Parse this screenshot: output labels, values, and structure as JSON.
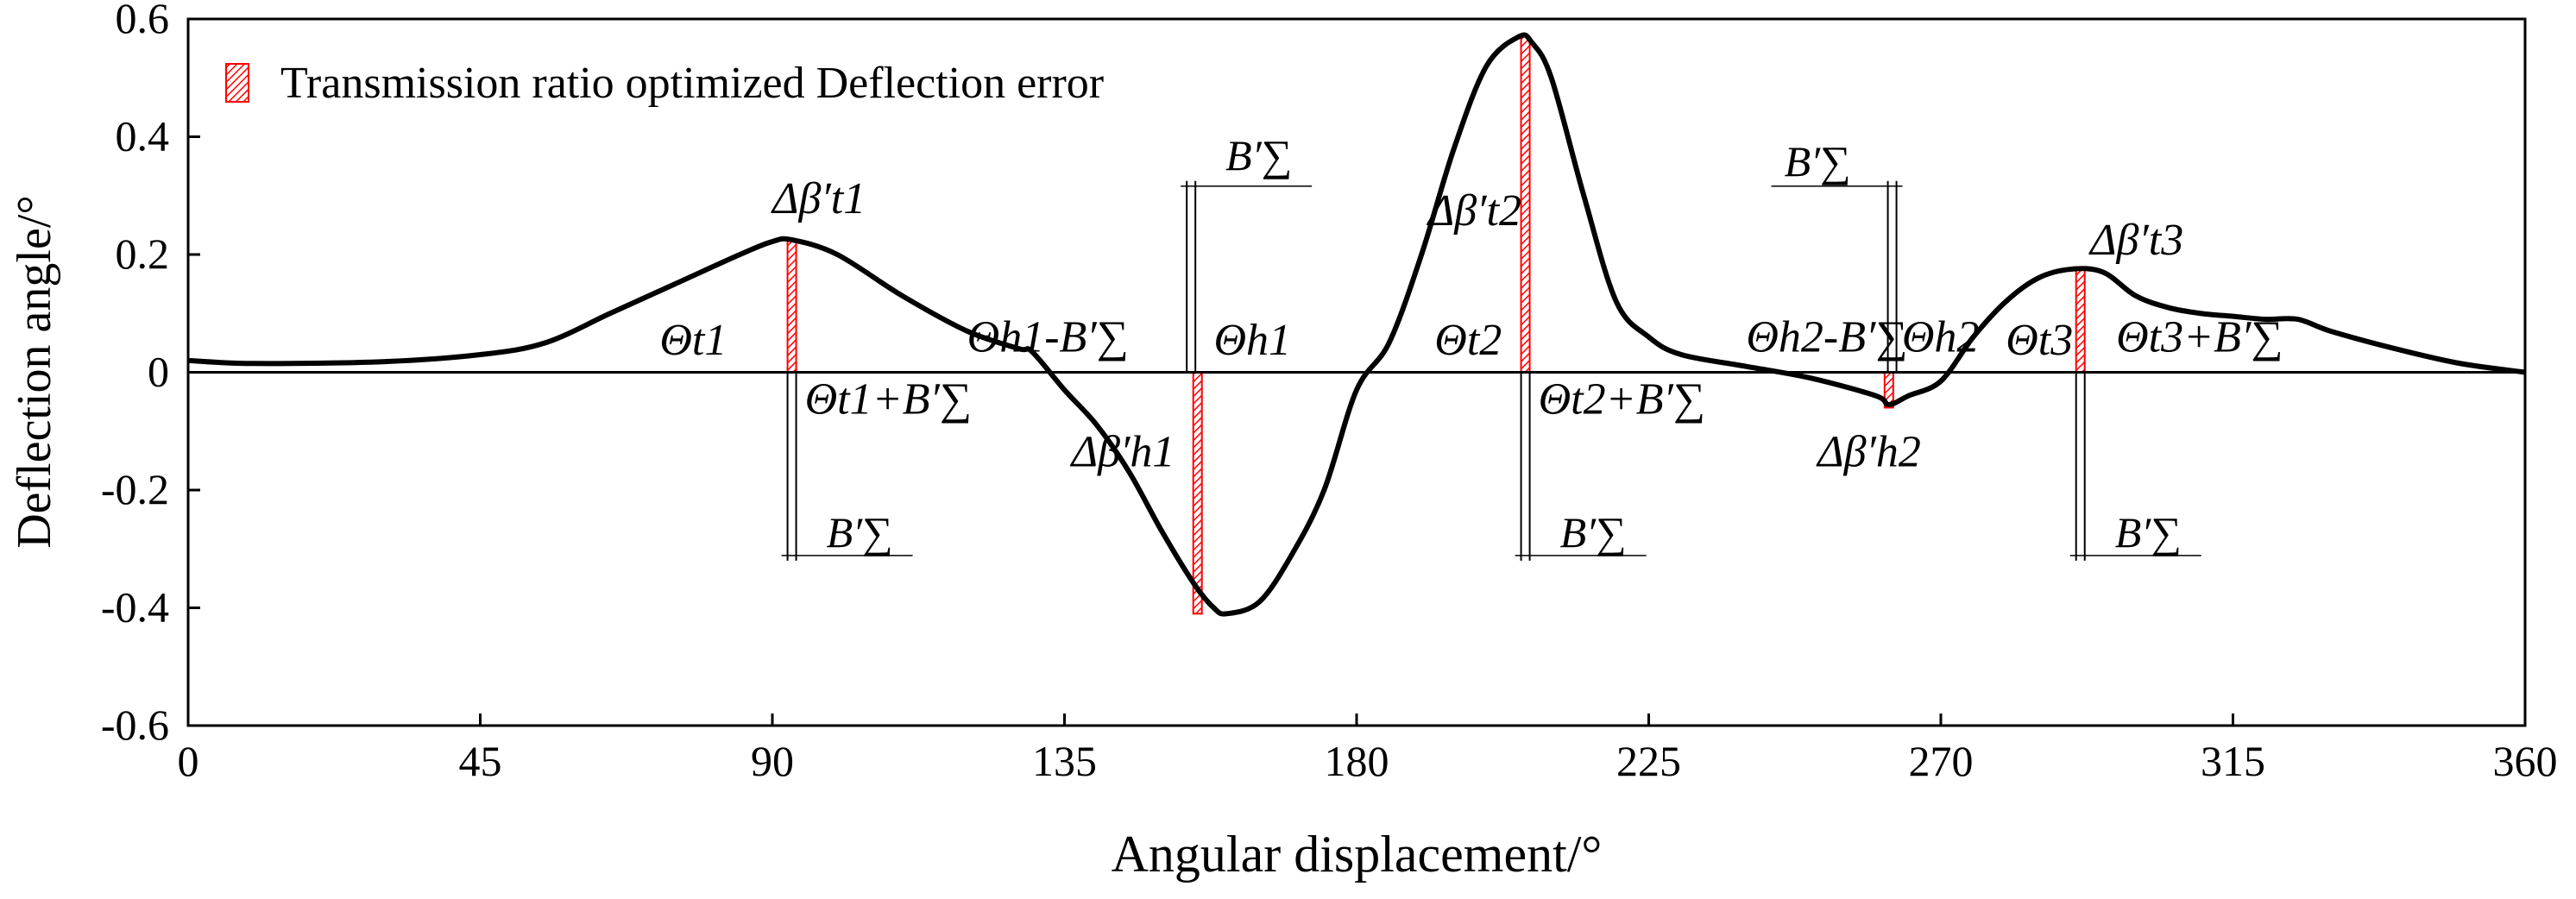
{
  "chart_data": {
    "type": "line",
    "xlabel": "Angular displacement/°",
    "ylabel": "Deflection  angle/°",
    "xlim": [
      0,
      360
    ],
    "ylim": [
      -0.6,
      0.6
    ],
    "x_ticks": [
      0,
      45,
      90,
      135,
      180,
      225,
      270,
      315,
      360
    ],
    "y_ticks": [
      0.6,
      0.4,
      0.2,
      0,
      -0.2,
      -0.4,
      -0.6
    ],
    "y_tick_labels": [
      "0.6",
      "0.4",
      "0.2",
      "0",
      "-0.2",
      "-0.4",
      "-0.6"
    ],
    "grid": false,
    "legend": {
      "position": "top-left",
      "label": "Transmission ratio optimized Deflection error",
      "color": "#ff0000"
    },
    "series": [
      {
        "color": "#000000",
        "x": [
          0,
          10,
          30,
          45,
          55,
          65,
          75,
          85,
          90,
          93,
          100,
          110,
          120,
          128,
          130,
          135,
          140,
          145,
          150,
          155,
          158,
          160,
          165,
          170,
          175,
          180,
          185,
          190,
          195,
          200,
          205,
          207,
          210,
          215,
          220,
          225,
          230,
          240,
          250,
          260,
          262,
          265,
          270,
          275,
          280,
          285,
          290,
          295,
          300,
          305,
          310,
          315,
          320,
          325,
          330,
          340,
          350,
          360
        ],
        "y": [
          0.02,
          0.015,
          0.018,
          0.03,
          0.05,
          0.1,
          0.15,
          0.2,
          0.222,
          0.225,
          0.2,
          0.13,
          0.07,
          0.04,
          0.035,
          -0.03,
          -0.09,
          -0.17,
          -0.27,
          -0.36,
          -0.4,
          -0.41,
          -0.39,
          -0.31,
          -0.2,
          -0.03,
          0.05,
          0.2,
          0.38,
          0.52,
          0.57,
          0.56,
          0.5,
          0.3,
          0.12,
          0.06,
          0.03,
          0.01,
          -0.01,
          -0.04,
          -0.055,
          -0.04,
          -0.015,
          0.06,
          0.12,
          0.16,
          0.175,
          0.17,
          0.13,
          0.11,
          0.1,
          0.095,
          0.09,
          0.09,
          0.07,
          0.04,
          0.015,
          0
        ]
      }
    ],
    "highlight_bars": [
      {
        "x": 93,
        "y0": 0,
        "y1": 0.225
      },
      {
        "x": 155.5,
        "y0": 0,
        "y1": -0.41
      },
      {
        "x": 206,
        "y0": 0,
        "y1": 0.57
      },
      {
        "x": 262,
        "y0": 0,
        "y1": -0.06
      },
      {
        "x": 291.5,
        "y0": 0,
        "y1": 0.175
      }
    ],
    "b_sigma_markers": [
      {
        "x": 93,
        "y_end": -0.32,
        "label_y": -0.27,
        "direction": "right"
      },
      {
        "x": 154.5,
        "y_end": 0.325,
        "label_y": 0.37,
        "direction": "right"
      },
      {
        "x": 206,
        "y_end": -0.32,
        "label_y": -0.27,
        "direction": "right"
      },
      {
        "x": 262.5,
        "y_end": 0.325,
        "label_y": 0.36,
        "direction": "left"
      },
      {
        "x": 291.5,
        "y_end": -0.32,
        "label_y": -0.27,
        "direction": "right"
      }
    ],
    "annotations": {
      "b_sigma": "B′∑",
      "dbeta_t1": "Δβ′t1",
      "dbeta_h1": "Δβ′h1",
      "dbeta_t2": "Δβ′t2",
      "dbeta_h2": "Δβ′h2",
      "dbeta_t3": "Δβ′t3",
      "theta_t1": "Θt1",
      "theta_t1_plus": "Θt1+B′∑",
      "theta_h1_minus": "Θh1-B′∑",
      "theta_h1": "Θh1",
      "theta_t2": "Θt2",
      "theta_t2_plus": "Θt2+B′∑",
      "theta_h2_minus": "Θh2-B′∑",
      "theta_h2": "Θh2",
      "theta_t3": "Θt3",
      "theta_t3_plus": "Θt3+B′∑"
    }
  }
}
